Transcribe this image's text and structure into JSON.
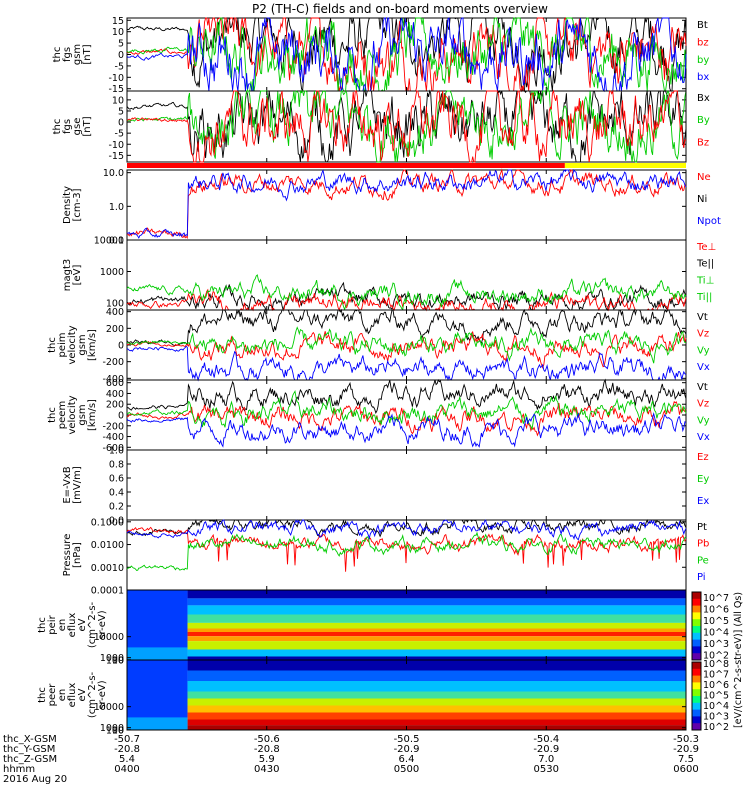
{
  "title": "P2 (TH-C) fields and on-board moments overview",
  "panels": [
    {
      "id": "fgs_gsm",
      "ylabel": [
        "thc",
        "fgs",
        "gsm",
        "[nT]"
      ],
      "yticks": [
        15,
        10,
        5,
        0,
        -5,
        -10,
        -15
      ],
      "ylim": [
        -16,
        16
      ],
      "legend": [
        {
          "label": "Bt",
          "color": "#000000"
        },
        {
          "label": "bz",
          "color": "#ff0000"
        },
        {
          "label": "by",
          "color": "#00cc00"
        },
        {
          "label": "bx",
          "color": "#0000ff"
        }
      ]
    },
    {
      "id": "fgs_gse",
      "ylabel": [
        "thc",
        "fgs",
        "gse",
        "[nT]"
      ],
      "yticks": [
        10,
        5,
        0,
        -5,
        -10,
        -15
      ],
      "ylim": [
        -18,
        14
      ],
      "legend": [
        {
          "label": "Bx",
          "color": "#000000"
        },
        {
          "label": "By",
          "color": "#00cc00"
        },
        {
          "label": "Bz",
          "color": "#ff0000"
        }
      ]
    },
    {
      "id": "density",
      "ylabel": [
        "Density",
        "[cm-3]"
      ],
      "log": true,
      "yticks": [
        "10.0",
        "1.0",
        "0.1"
      ],
      "ylim": [
        0.1,
        12
      ],
      "legend": [
        {
          "label": "Ne",
          "color": "#ff0000"
        },
        {
          "label": "Ni",
          "color": "#000000"
        },
        {
          "label": "Npot",
          "color": "#0000ff"
        }
      ]
    },
    {
      "id": "temp",
      "ylabel": [
        "magt3",
        "[eV]"
      ],
      "log": true,
      "yticks": [
        "10000",
        "1000",
        "100"
      ],
      "ylim": [
        60,
        10000
      ],
      "legend": [
        {
          "label": "Te⊥",
          "color": "#ff0000"
        },
        {
          "label": "Te||",
          "color": "#000000"
        },
        {
          "label": "Ti⊥",
          "color": "#00cc00"
        },
        {
          "label": "Ti||",
          "color": "#00cc00"
        }
      ]
    },
    {
      "id": "vi",
      "ylabel": [
        "thc",
        "peim",
        "velocity",
        "gsm",
        "[km/s]"
      ],
      "yticks": [
        400,
        200,
        0,
        -200,
        -400
      ],
      "ylim": [
        -420,
        420
      ],
      "legend": [
        {
          "label": "Vt",
          "color": "#000000"
        },
        {
          "label": "Vz",
          "color": "#ff0000"
        },
        {
          "label": "Vy",
          "color": "#00cc00"
        },
        {
          "label": "Vx",
          "color": "#0000ff"
        }
      ]
    },
    {
      "id": "ve",
      "ylabel": [
        "thc",
        "peem",
        "velocity",
        "gsm",
        "[km/s]"
      ],
      "yticks": [
        600,
        400,
        200,
        0,
        -200,
        -400,
        -600
      ],
      "ylim": [
        -650,
        650
      ],
      "legend": [
        {
          "label": "Vt",
          "color": "#000000"
        },
        {
          "label": "Vz",
          "color": "#ff0000"
        },
        {
          "label": "Vy",
          "color": "#00cc00"
        },
        {
          "label": "Vx",
          "color": "#0000ff"
        }
      ]
    },
    {
      "id": "efield",
      "ylabel": [
        "E=-VxB",
        "[mV/m]"
      ],
      "yticks": [
        "1.0",
        "0.8",
        "0.6",
        "0.4",
        "0.2",
        "0.0"
      ],
      "ylim": [
        0,
        1
      ],
      "legend": [
        {
          "label": "Ez",
          "color": "#ff0000"
        },
        {
          "label": "Ey",
          "color": "#00cc00"
        },
        {
          "label": "Ex",
          "color": "#0000ff"
        }
      ]
    },
    {
      "id": "pressure",
      "ylabel": [
        "Pressure",
        "[nPa]"
      ],
      "log": true,
      "yticks": [
        "0.1000",
        "0.0100",
        "0.0010",
        "0.0001"
      ],
      "ylim": [
        0.0001,
        0.12
      ],
      "legend": [
        {
          "label": "Pt",
          "color": "#000000"
        },
        {
          "label": "Pb",
          "color": "#ff0000"
        },
        {
          "label": "Pe",
          "color": "#00cc00"
        },
        {
          "label": "Pi",
          "color": "#0000ff"
        }
      ]
    },
    {
      "id": "ion_spec",
      "ylabel": [
        "thc",
        "peir",
        "en",
        "eflux",
        "eV",
        "(cm^2-s-",
        "sr-eV)"
      ],
      "yticks": [
        "10000",
        "1000",
        "100",
        "10"
      ],
      "ylim": [
        5,
        30000
      ]
    },
    {
      "id": "ele_spec",
      "ylabel": [
        "thc",
        "peer",
        "en",
        "eflux",
        "eV",
        "(cm^2-s-",
        "sr-eV)"
      ],
      "yticks": [
        "10000",
        "1000",
        "100",
        "10"
      ],
      "ylim": [
        5,
        30000
      ]
    }
  ],
  "colorbar": {
    "ticks": [
      "10^7",
      "10^6",
      "10^5",
      "10^4",
      "10^3",
      "10^2",
      "10^8",
      "10^7",
      "10^6",
      "10^5",
      "10^4",
      "10^3",
      "10^2"
    ],
    "label": "[eV/(cm^2-s-str-eV)] (All Qs)"
  },
  "footer": {
    "row_labels": [
      "thc_X-GSM",
      "thc_Y-GSM",
      "thc_Z-GSM",
      "hhmm",
      "2016 Aug 20"
    ],
    "columns": [
      [
        "-50.7",
        "-20.8",
        "5.4",
        "0400"
      ],
      [
        "-50.6",
        "-20.8",
        "5.9",
        "0430"
      ],
      [
        "-50.5",
        "-20.9",
        "6.4",
        "0500"
      ],
      [
        "-50.4",
        "-20.9",
        "7.0",
        "0530"
      ],
      [
        "-50.3",
        "-20.9",
        "7.5",
        "0600"
      ]
    ]
  },
  "status_bar": {
    "colors": [
      "#ff0000",
      "#ffff00"
    ],
    "switch_time": "0534"
  },
  "chart_data": {
    "type": "line",
    "title": "P2 (TH-C) fields and on-board moments overview",
    "xlabel": "hhmm",
    "x_ticks": [
      "0400",
      "0430",
      "0500",
      "0530",
      "0600"
    ],
    "x_range": [
      "0400",
      "0600"
    ],
    "transition_time": "0413",
    "series": [
      {
        "panel": "fgs_gsm",
        "name": "Bt",
        "before": 11,
        "after": 6
      },
      {
        "panel": "fgs_gsm",
        "name": "bz",
        "before": 1,
        "after": 1
      },
      {
        "panel": "fgs_gsm",
        "name": "by",
        "before": 2,
        "after": 1
      },
      {
        "panel": "fgs_gsm",
        "name": "bx",
        "before": -1,
        "after": 0
      },
      {
        "panel": "fgs_gse",
        "name": "Bx",
        "before": 7,
        "after": -2
      },
      {
        "panel": "fgs_gse",
        "name": "By",
        "before": 1,
        "after": 0
      },
      {
        "panel": "fgs_gse",
        "name": "Bz",
        "before": 1,
        "after": -1
      },
      {
        "panel": "density",
        "name": "Ne",
        "before": 0.15,
        "after": 5
      },
      {
        "panel": "density",
        "name": "Npot",
        "before": 0.14,
        "after": 5.5
      },
      {
        "panel": "temp",
        "name": "Te||",
        "before": 120,
        "after": 130
      },
      {
        "panel": "temp",
        "name": "Te⊥",
        "before": 90,
        "after": 95
      },
      {
        "panel": "temp",
        "name": "Ti⊥",
        "before": 250,
        "after": 200
      },
      {
        "panel": "vi",
        "name": "Vt",
        "before": 40,
        "after": 300
      },
      {
        "panel": "vi",
        "name": "Vz",
        "before": 20,
        "after": -20
      },
      {
        "panel": "vi",
        "name": "Vy",
        "before": 30,
        "after": -10
      },
      {
        "panel": "vi",
        "name": "Vx",
        "before": -30,
        "after": -300
      },
      {
        "panel": "ve",
        "name": "Vt",
        "before": 150,
        "after": 380
      },
      {
        "panel": "ve",
        "name": "Vz",
        "before": -20,
        "after": -40
      },
      {
        "panel": "ve",
        "name": "Vy",
        "before": 40,
        "after": 60
      },
      {
        "panel": "ve",
        "name": "Vx",
        "before": -80,
        "after": -260
      },
      {
        "panel": "pressure",
        "name": "Pt",
        "before": 0.04,
        "after": 0.07
      },
      {
        "panel": "pressure",
        "name": "Pb",
        "before": 0.04,
        "after": 0.012
      },
      {
        "panel": "pressure",
        "name": "Pe",
        "before": 0.001,
        "after": 0.01
      },
      {
        "panel": "pressure",
        "name": "Pi",
        "before": 0.03,
        "after": 0.05
      }
    ]
  }
}
